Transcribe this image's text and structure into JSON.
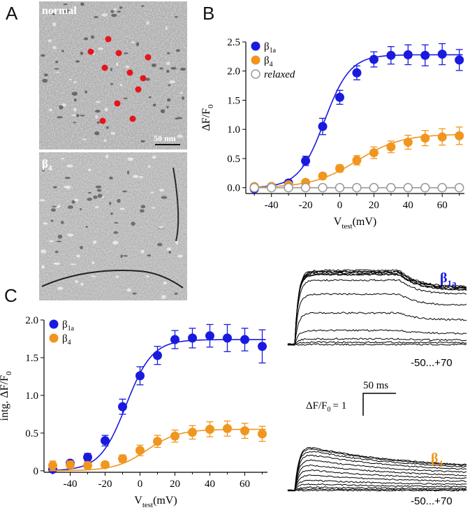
{
  "panels": {
    "a": "A",
    "b": "B",
    "c": "C"
  },
  "em": {
    "top_label": "normal",
    "scale_bar": "50 nm",
    "bottom_label_base": "β",
    "bottom_label_sub": "4"
  },
  "colors": {
    "b1a": "#1a1adf",
    "b4": "#f0961e",
    "relaxed": "#999999"
  },
  "traces": {
    "top_label_base": "β",
    "top_label_sub": "1a",
    "top_range": "-50...+70",
    "bottom_label_base": "β",
    "bottom_label_sub": "4",
    "bottom_range": "-50...+70",
    "scalebar_time": "50 ms",
    "scalebar_amp": "ΔF/F",
    "scalebar_amp_sub": "0",
    "scalebar_amp_value": "= 1"
  },
  "chart_data": [
    {
      "type": "scatter",
      "panel": "B",
      "xlabel": "V",
      "xlabel_sub": "test",
      "xlabel_unit": "(mV)",
      "ylabel": "ΔF/F",
      "ylabel_sub": "0",
      "xlim": [
        -55,
        73
      ],
      "ylim": [
        -0.1,
        2.5
      ],
      "xticks": [
        -40,
        -20,
        0,
        20,
        40,
        60
      ],
      "yticks": [
        0.0,
        0.5,
        1.0,
        1.5,
        2.0,
        2.5
      ],
      "ytick_labels": [
        "0.0",
        "0.5",
        "1.0",
        "1.5",
        "2.0",
        "2.5"
      ],
      "legend": "top-left",
      "series": [
        {
          "name": "β",
          "name_sub": "1a",
          "style": "filled",
          "color": "#1a1adf",
          "x": [
            -50,
            -40,
            -30,
            -20,
            -10,
            0,
            10,
            20,
            30,
            40,
            50,
            60,
            70
          ],
          "y": [
            -0.02,
            0.02,
            0.08,
            0.46,
            1.05,
            1.55,
            1.97,
            2.2,
            2.27,
            2.28,
            2.27,
            2.29,
            2.19
          ],
          "err": [
            0.02,
            0.03,
            0.05,
            0.08,
            0.14,
            0.12,
            0.12,
            0.13,
            0.15,
            0.17,
            0.18,
            0.18,
            0.18
          ],
          "fit": {
            "vmax": 2.28,
            "vhalf": -9,
            "k": 7.5
          }
        },
        {
          "name": "β",
          "name_sub": "4",
          "style": "filled",
          "color": "#f0961e",
          "x": [
            -50,
            -40,
            -30,
            -20,
            -10,
            0,
            10,
            20,
            30,
            40,
            50,
            60,
            70
          ],
          "y": [
            0.02,
            0.02,
            0.05,
            0.09,
            0.2,
            0.33,
            0.47,
            0.6,
            0.7,
            0.78,
            0.85,
            0.87,
            0.89
          ],
          "err": [
            0.02,
            0.02,
            0.03,
            0.04,
            0.05,
            0.06,
            0.08,
            0.1,
            0.1,
            0.12,
            0.13,
            0.14,
            0.15
          ],
          "fit": {
            "vmax": 0.92,
            "vhalf": 10,
            "k": 13
          }
        },
        {
          "name": "relaxed",
          "style": "open",
          "color": "#999999",
          "x": [
            -50,
            -40,
            -30,
            -20,
            -10,
            0,
            10,
            20,
            30,
            40,
            50,
            60,
            70
          ],
          "y": [
            0,
            0,
            0,
            0,
            0,
            0,
            0,
            0,
            0,
            0,
            0,
            0,
            0
          ],
          "err": [
            0,
            0,
            0,
            0,
            0,
            0,
            0,
            0,
            0,
            0,
            0,
            0,
            0
          ],
          "fit": {
            "vmax": 0,
            "vhalf": 0,
            "k": 10
          }
        }
      ]
    },
    {
      "type": "scatter",
      "panel": "C",
      "xlabel": "V",
      "xlabel_sub": "test",
      "xlabel_unit": "(mV)",
      "ylabel": "intg. ΔF/F",
      "ylabel_sub": "0",
      "xlim": [
        -55,
        73
      ],
      "ylim": [
        -0.02,
        2.0
      ],
      "xticks": [
        -40,
        -20,
        0,
        20,
        40,
        60
      ],
      "yticks": [
        0.0,
        0.5,
        1.0,
        1.5,
        2.0
      ],
      "ytick_labels": [
        "0",
        "0.5",
        "1.0",
        "1.5",
        "2.0"
      ],
      "legend": "top-left",
      "series": [
        {
          "name": "β",
          "name_sub": "1a",
          "style": "filled",
          "color": "#1a1adf",
          "x": [
            -50,
            -40,
            -30,
            -20,
            -10,
            0,
            10,
            20,
            30,
            40,
            50,
            60,
            70
          ],
          "y": [
            0.02,
            0.1,
            0.18,
            0.4,
            0.85,
            1.26,
            1.53,
            1.74,
            1.76,
            1.79,
            1.76,
            1.74,
            1.65
          ],
          "err": [
            0.03,
            0.04,
            0.05,
            0.07,
            0.1,
            0.12,
            0.12,
            0.12,
            0.13,
            0.15,
            0.18,
            0.15,
            0.22
          ],
          "fit": {
            "vmax": 1.74,
            "vhalf": -8,
            "k": 7.5
          }
        },
        {
          "name": "β",
          "name_sub": "4",
          "style": "filled",
          "color": "#f0961e",
          "x": [
            -50,
            -40,
            -30,
            -20,
            -10,
            0,
            10,
            20,
            30,
            40,
            50,
            60,
            70
          ],
          "y": [
            0.07,
            0.08,
            0.07,
            0.08,
            0.16,
            0.27,
            0.39,
            0.46,
            0.51,
            0.55,
            0.56,
            0.53,
            0.49
          ],
          "err": [
            0.06,
            0.05,
            0.04,
            0.04,
            0.05,
            0.07,
            0.08,
            0.08,
            0.09,
            0.1,
            0.1,
            0.1,
            0.1
          ],
          "fit": {
            "vmax": 0.55,
            "vhalf": 4,
            "k": 9
          }
        }
      ]
    }
  ]
}
